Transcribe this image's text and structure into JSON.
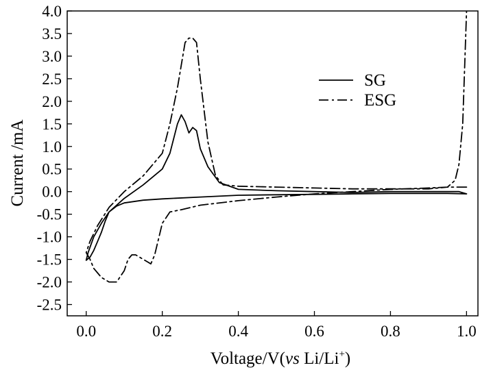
{
  "chart_data": {
    "type": "line",
    "title": "",
    "xlabel": {
      "prefix": "Voltage/V(",
      "italic": "vs",
      "middle": " Li/Li",
      "superscript": "+",
      "suffix": ")"
    },
    "ylabel": "Current /mA",
    "xlim": [
      -0.05,
      1.03
    ],
    "ylim": [
      -2.75,
      4.0
    ],
    "xticks": [
      "0.0",
      "0.2",
      "0.4",
      "0.6",
      "0.8",
      "1.0"
    ],
    "yticks": [
      "4.0",
      "3.5",
      "3.0",
      "2.5",
      "2.0",
      "1.5",
      "1.0",
      "0.5",
      "0.0",
      "-0.5",
      "-1.0",
      "-1.5",
      "-2.0",
      "-2.5"
    ],
    "grid": false,
    "legend_position": "top-right",
    "series": [
      {
        "name": "SG",
        "style": "solid",
        "color": "#000000",
        "x": [
          1.0,
          0.95,
          0.9,
          0.85,
          0.8,
          0.7,
          0.6,
          0.5,
          0.4,
          0.3,
          0.2,
          0.15,
          0.1,
          0.08,
          0.06,
          0.05,
          0.04,
          0.03,
          0.02,
          0.01,
          0.0,
          0.005,
          0.02,
          0.04,
          0.06,
          0.1,
          0.15,
          0.2,
          0.22,
          0.24,
          0.25,
          0.26,
          0.27,
          0.28,
          0.29,
          0.3,
          0.32,
          0.35,
          0.4,
          0.5,
          0.6,
          0.7,
          0.8,
          0.9,
          0.95,
          0.98,
          1.0
        ],
        "y": [
          -0.05,
          -0.04,
          -0.04,
          -0.04,
          -0.04,
          -0.05,
          -0.06,
          -0.07,
          -0.08,
          -0.12,
          -0.16,
          -0.19,
          -0.25,
          -0.32,
          -0.45,
          -0.65,
          -0.9,
          -1.1,
          -1.3,
          -1.45,
          -1.52,
          -1.35,
          -1.0,
          -0.7,
          -0.45,
          -0.15,
          0.15,
          0.5,
          0.85,
          1.5,
          1.7,
          1.55,
          1.3,
          1.42,
          1.35,
          0.95,
          0.55,
          0.2,
          0.05,
          0.02,
          0.0,
          -0.02,
          0.0,
          0.0,
          0.0,
          0.0,
          -0.05
        ]
      },
      {
        "name": "ESG",
        "style": "dashdot",
        "color": "#000000",
        "x": [
          1.0,
          0.95,
          0.9,
          0.8,
          0.7,
          0.6,
          0.5,
          0.4,
          0.3,
          0.25,
          0.22,
          0.2,
          0.18,
          0.17,
          0.16,
          0.14,
          0.13,
          0.12,
          0.11,
          0.1,
          0.08,
          0.06,
          0.04,
          0.02,
          0.01,
          0.0,
          0.01,
          0.03,
          0.06,
          0.1,
          0.15,
          0.2,
          0.22,
          0.24,
          0.26,
          0.27,
          0.28,
          0.29,
          0.3,
          0.32,
          0.34,
          0.36,
          0.4,
          0.5,
          0.6,
          0.7,
          0.8,
          0.9,
          0.95,
          0.97,
          0.98,
          0.99,
          1.0
        ],
        "y": [
          0.1,
          0.1,
          0.08,
          0.05,
          0.0,
          -0.05,
          -0.12,
          -0.2,
          -0.3,
          -0.4,
          -0.45,
          -0.7,
          -1.4,
          -1.6,
          -1.55,
          -1.45,
          -1.4,
          -1.4,
          -1.5,
          -1.75,
          -2.0,
          -2.0,
          -1.9,
          -1.7,
          -1.5,
          -1.35,
          -1.1,
          -0.75,
          -0.35,
          0.0,
          0.35,
          0.85,
          1.5,
          2.3,
          3.3,
          3.4,
          3.4,
          3.3,
          2.5,
          1.1,
          0.35,
          0.15,
          0.12,
          0.1,
          0.08,
          0.06,
          0.06,
          0.06,
          0.1,
          0.25,
          0.6,
          1.5,
          4.0
        ]
      }
    ]
  }
}
